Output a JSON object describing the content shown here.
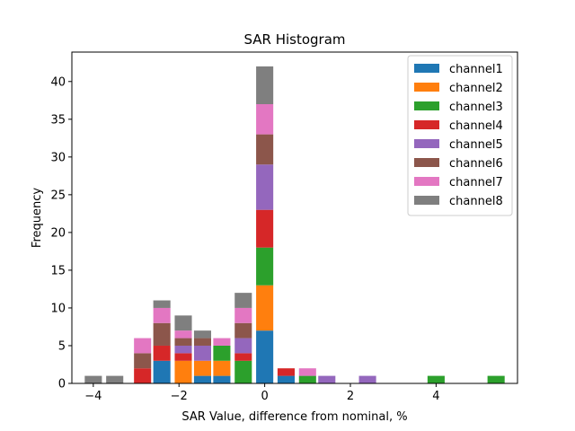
{
  "chart_data": {
    "type": "bar",
    "stacked": true,
    "title": "SAR Histogram",
    "xlabel": "SAR Value, difference from nominal, %",
    "ylabel": "Frequency",
    "xlim": [
      -4.5,
      5.9
    ],
    "ylim": [
      0,
      43.9
    ],
    "xticks": [
      -4,
      -2,
      0,
      2,
      4
    ],
    "xtick_labels": [
      "−4",
      "−2",
      "0",
      "2",
      "4"
    ],
    "yticks": [
      0,
      5,
      10,
      15,
      20,
      25,
      30,
      35,
      40
    ],
    "bar_width": 0.4,
    "bin_centers": [
      -4.0,
      -3.5,
      -2.85,
      -2.4,
      -1.9,
      -1.45,
      -1.0,
      -0.5,
      0.0,
      0.5,
      1.0,
      1.45,
      2.4,
      4.0,
      5.4
    ],
    "series": [
      {
        "name": "channel1",
        "color": "#1f77b4",
        "values": [
          0,
          0,
          0,
          3,
          0,
          1,
          1,
          0,
          7,
          1,
          0,
          0,
          0,
          0,
          0
        ]
      },
      {
        "name": "channel2",
        "color": "#ff7f0e",
        "values": [
          0,
          0,
          0,
          0,
          3,
          2,
          2,
          0,
          6,
          0,
          0,
          0,
          0,
          0,
          0
        ]
      },
      {
        "name": "channel3",
        "color": "#2ca02c",
        "values": [
          0,
          0,
          0,
          0,
          0,
          0,
          2,
          3,
          5,
          0,
          1,
          0,
          0,
          1,
          1
        ]
      },
      {
        "name": "channel4",
        "color": "#d62728",
        "values": [
          0,
          0,
          2,
          2,
          1,
          0,
          0,
          1,
          5,
          1,
          0,
          0,
          0,
          0,
          0
        ]
      },
      {
        "name": "channel5",
        "color": "#9467bd",
        "values": [
          0,
          0,
          0,
          0,
          1,
          2,
          0,
          2,
          6,
          0,
          0,
          1,
          1,
          0,
          0
        ]
      },
      {
        "name": "channel6",
        "color": "#8c564b",
        "values": [
          0,
          0,
          2,
          3,
          1,
          1,
          0,
          2,
          4,
          0,
          0,
          0,
          0,
          0,
          0
        ]
      },
      {
        "name": "channel7",
        "color": "#e377c2",
        "values": [
          0,
          0,
          2,
          2,
          1,
          0,
          1,
          2,
          4,
          0,
          1,
          0,
          0,
          0,
          0
        ]
      },
      {
        "name": "channel8",
        "color": "#7f7f7f",
        "values": [
          1,
          1,
          0,
          1,
          2,
          1,
          0,
          2,
          5,
          0,
          0,
          0,
          0,
          0,
          0
        ]
      }
    ],
    "legend_position": "top-right",
    "grid": false
  }
}
